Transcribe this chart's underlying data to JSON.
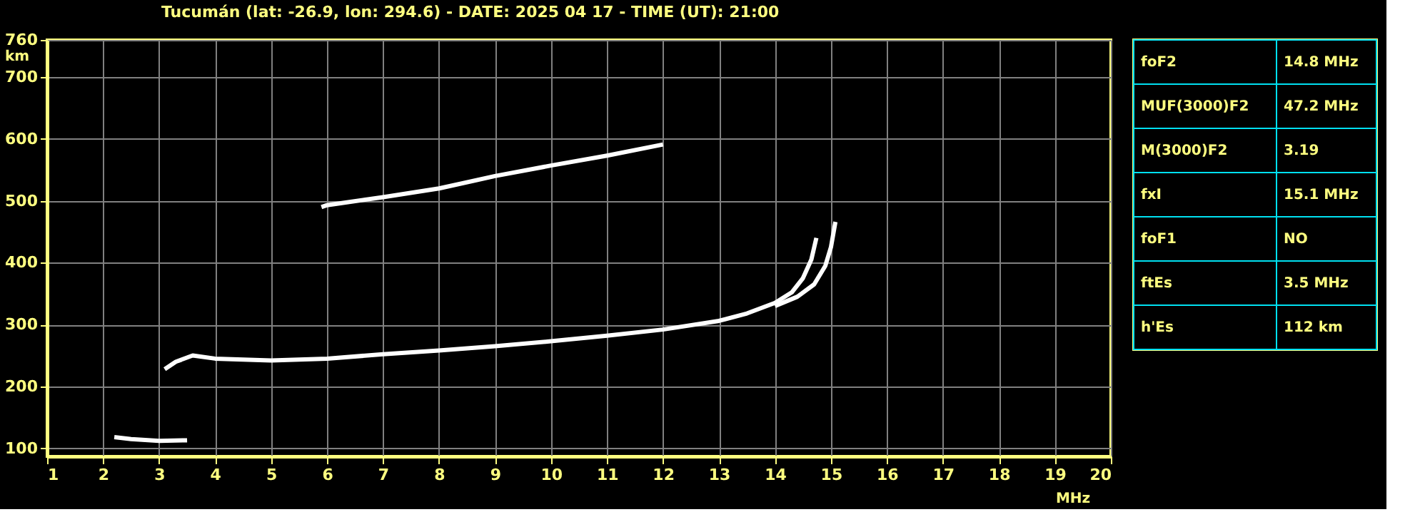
{
  "chart_data": [
    {
      "type": "line",
      "title": "Tucumán (lat: -26.9, lon: 294.6) - DATE: 2025 04 17 - TIME (UT): 21:00",
      "xlabel": "MHz",
      "ylabel": "km",
      "xlim": [
        1,
        20
      ],
      "xticks": [
        1,
        2,
        3,
        4,
        5,
        6,
        7,
        8,
        9,
        10,
        11,
        12,
        13,
        14,
        15,
        16,
        17,
        18,
        19,
        20
      ],
      "ylim": [
        87,
        760
      ],
      "yticks": [
        100,
        200,
        300,
        400,
        500,
        600,
        700,
        760
      ],
      "grid": true,
      "marker": "none",
      "line_style": "solid",
      "series": [
        {
          "color": "#ffffff",
          "x": [
            2.2,
            2.5,
            3.0,
            3.5
          ],
          "values": [
            118,
            115,
            112,
            113
          ]
        },
        {
          "color": "#ffffff",
          "x": [
            3.1,
            3.3,
            3.6,
            4,
            5,
            6,
            7,
            8,
            9,
            10,
            11,
            12,
            13,
            13.5,
            14,
            14.3,
            14.5,
            14.65,
            14.74
          ],
          "values": [
            228,
            240,
            250,
            245,
            242,
            245,
            252,
            258,
            265,
            273,
            282,
            292,
            306,
            318,
            335,
            352,
            375,
            405,
            440
          ]
        },
        {
          "color": "#ffffff",
          "x": [
            14.0,
            14.4,
            14.7,
            14.9,
            15.0,
            15.08
          ],
          "values": [
            330,
            345,
            365,
            395,
            425,
            466
          ]
        },
        {
          "color": "#ffffff",
          "x": [
            5.9,
            6,
            7,
            8,
            9,
            10,
            11,
            12
          ],
          "values": [
            490,
            493,
            506,
            520,
            540,
            557,
            573,
            591
          ]
        }
      ]
    },
    {
      "type": "other",
      "categories": [
        "foF2",
        "MUF(3000)F2",
        "M(3000)F2",
        "fxI",
        "foF1",
        "ftEs",
        "h'Es"
      ],
      "value_labels": [
        "14.8 MHz",
        "47.2 MHz",
        "3.19",
        "15.1 MHz",
        "NO",
        "3.5 MHz",
        "112 km"
      ]
    }
  ]
}
